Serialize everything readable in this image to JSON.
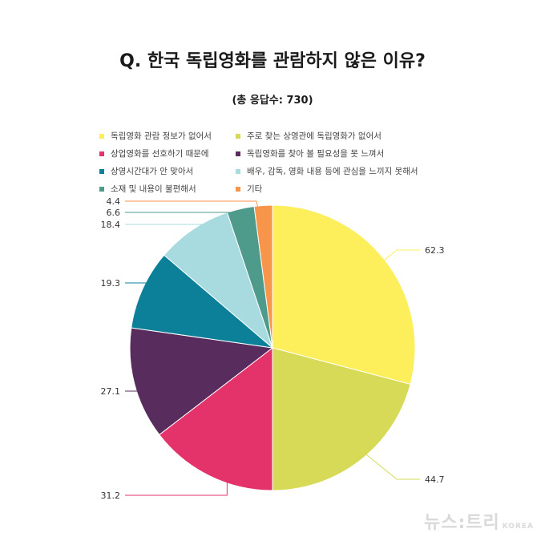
{
  "chart_data": {
    "type": "pie",
    "title": "Q. 한국 독립영화를 관람하지 않은 이유?",
    "subtitle": "(총 응답수: 730)",
    "categories": [
      "독립영화 관람 정보가 없어서",
      "주로 찾는 상영관에 독립영화가 없어서",
      "상업영화를 선호하기 때문에",
      "독립영화를 찾아 볼 필요성을 못 느껴서",
      "상영시간대가 안 맞아서",
      "배우, 감독, 영화 내용 등에 관심을 느끼지 못해서",
      "소재 및 내용이 불편해서",
      "기타"
    ],
    "values": [
      62.3,
      44.7,
      31.2,
      27.1,
      19.3,
      18.4,
      6.6,
      4.4
    ],
    "value_labels": [
      "62.3",
      "44.7",
      "31.2",
      "27.1",
      "19.3",
      "18.4",
      "6.6",
      "4.4"
    ],
    "colors": [
      "#fdef5c",
      "#d6da57",
      "#e4326b",
      "#582d5e",
      "#0b8098",
      "#a8dbe0",
      "#4e9a8b",
      "#f7954a"
    ],
    "legend_position": "top"
  },
  "watermark": {
    "main": "뉴스:트리",
    "sub": "KOREA"
  }
}
